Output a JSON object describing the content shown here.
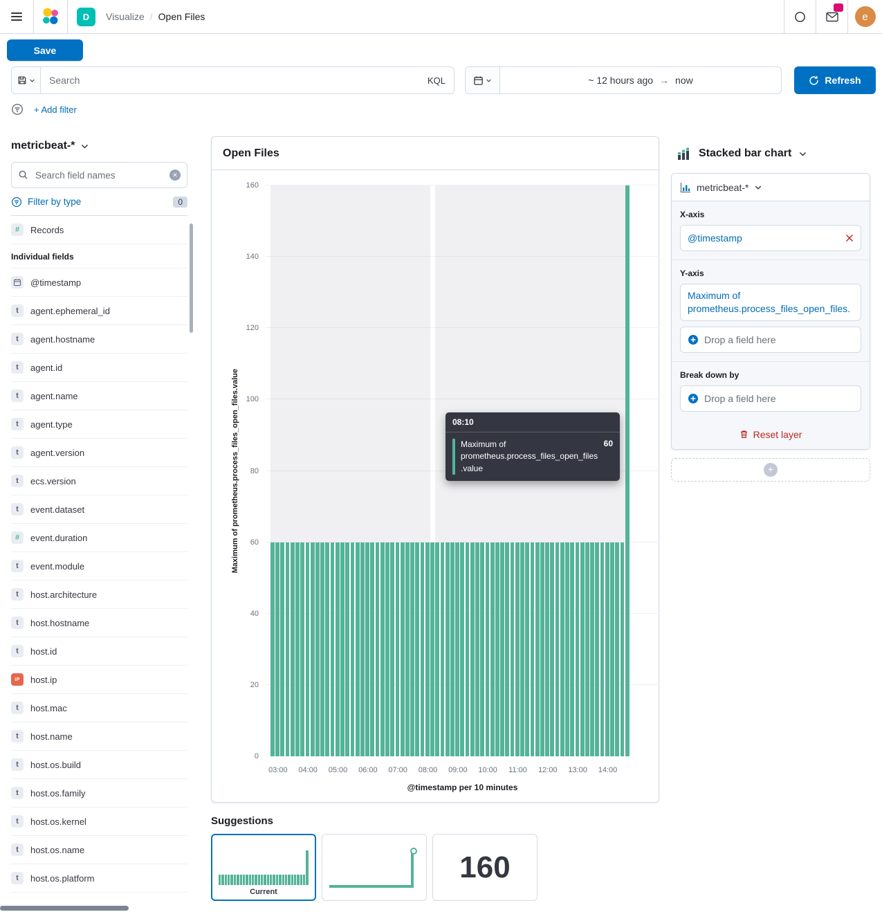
{
  "top_nav": {
    "space_initial": "D",
    "breadcrumb_section": "Visualize",
    "breadcrumb_separator": "/",
    "breadcrumb_page": "Open Files",
    "avatar_initial": "e"
  },
  "actions": {
    "save_label": "Save",
    "refresh_label": "Refresh",
    "add_filter_label": "+ Add filter"
  },
  "query_bar": {
    "search_placeholder": "Search",
    "language": "KQL",
    "time_start": "~ 12 hours ago",
    "time_arrow": "→",
    "time_end": "now"
  },
  "sidebar": {
    "index_pattern": "metricbeat-*",
    "field_search_placeholder": "Search field names",
    "filter_by_type_label": "Filter by type",
    "filter_count": "0",
    "records_label": "Records",
    "section_label": "Individual fields",
    "fields": [
      {
        "name": "@timestamp",
        "type": "date"
      },
      {
        "name": "agent.ephemeral_id",
        "type": "string"
      },
      {
        "name": "agent.hostname",
        "type": "string"
      },
      {
        "name": "agent.id",
        "type": "string"
      },
      {
        "name": "agent.name",
        "type": "string"
      },
      {
        "name": "agent.type",
        "type": "string"
      },
      {
        "name": "agent.version",
        "type": "string"
      },
      {
        "name": "ecs.version",
        "type": "string"
      },
      {
        "name": "event.dataset",
        "type": "string"
      },
      {
        "name": "event.duration",
        "type": "number"
      },
      {
        "name": "event.module",
        "type": "string"
      },
      {
        "name": "host.architecture",
        "type": "string"
      },
      {
        "name": "host.hostname",
        "type": "string"
      },
      {
        "name": "host.id",
        "type": "string"
      },
      {
        "name": "host.ip",
        "type": "ip"
      },
      {
        "name": "host.mac",
        "type": "string"
      },
      {
        "name": "host.name",
        "type": "string"
      },
      {
        "name": "host.os.build",
        "type": "string"
      },
      {
        "name": "host.os.family",
        "type": "string"
      },
      {
        "name": "host.os.kernel",
        "type": "string"
      },
      {
        "name": "host.os.name",
        "type": "string"
      },
      {
        "name": "host.os.platform",
        "type": "string"
      }
    ]
  },
  "chart_data": {
    "type": "bar",
    "title": "Open Files",
    "xlabel": "@timestamp per 10 minutes",
    "ylabel": "Maximum of prometheus.process_files_open_files.value",
    "ylim": [
      0,
      160
    ],
    "y_ticks": [
      0,
      20,
      40,
      60,
      80,
      100,
      120,
      140,
      160
    ],
    "x_ticks": [
      "03:00",
      "04:00",
      "05:00",
      "06:00",
      "07:00",
      "08:00",
      "09:00",
      "10:00",
      "11:00",
      "12:00",
      "13:00",
      "14:00"
    ],
    "start_time": "02:50",
    "interval_minutes": 10,
    "bar_color": "#54b399",
    "legend": "off",
    "values": [
      60,
      60,
      60,
      60,
      60,
      60,
      60,
      60,
      60,
      60,
      60,
      60,
      60,
      60,
      60,
      60,
      60,
      60,
      60,
      60,
      60,
      60,
      60,
      60,
      60,
      60,
      60,
      60,
      60,
      60,
      60,
      60,
      60,
      60,
      60,
      60,
      60,
      60,
      60,
      60,
      60,
      60,
      60,
      60,
      60,
      60,
      60,
      60,
      60,
      60,
      60,
      60,
      60,
      60,
      60,
      60,
      60,
      60,
      60,
      60,
      60,
      60,
      60,
      60,
      60,
      60,
      60,
      60,
      60,
      60,
      60,
      160
    ],
    "hover_index": 32,
    "tooltip": {
      "time": "08:10",
      "series_label": "Maximum of prometheus.process_files_open_files.value",
      "value": "60"
    }
  },
  "config_panel": {
    "chart_type_label": "Stacked bar chart",
    "layer_index_pattern": "metricbeat-*",
    "x_axis_label": "X-axis",
    "x_dimension": "@timestamp",
    "y_axis_label": "Y-axis",
    "y_dimension": "Maximum of prometheus.process_files_open_files.",
    "drop_field_label": "Drop a field here",
    "break_down_label": "Break down by",
    "reset_layer_label": "Reset layer"
  },
  "suggestions": {
    "title": "Suggestions",
    "current_label": "Current",
    "metric_value": "160"
  }
}
